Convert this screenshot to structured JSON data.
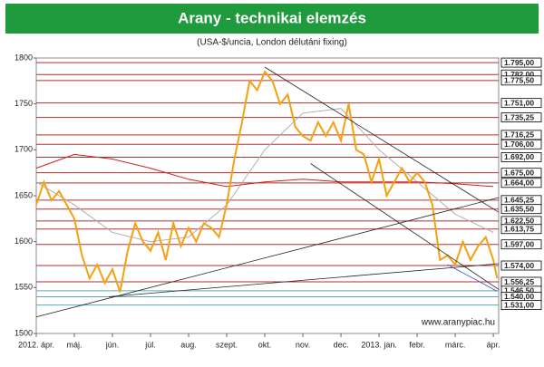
{
  "chart_data": {
    "type": "line",
    "title": "Arany - technikai elemzés",
    "subtitle": "(USA-$/uncia, London délutáni fixing)",
    "watermark": "www.aranypiac.hu",
    "title_bar_color": "#1f9a3c",
    "xlim": [
      0,
      12.14
    ],
    "xticks": [
      {
        "value": 0,
        "label": "2012. ápr."
      },
      {
        "value": 1,
        "label": "máj."
      },
      {
        "value": 2,
        "label": "jún."
      },
      {
        "value": 3,
        "label": "júl."
      },
      {
        "value": 4,
        "label": "aug."
      },
      {
        "value": 5,
        "label": "szept."
      },
      {
        "value": 6,
        "label": "okt."
      },
      {
        "value": 7,
        "label": "nov."
      },
      {
        "value": 8,
        "label": "dec."
      },
      {
        "value": 9,
        "label": "2013. jan."
      },
      {
        "value": 10,
        "label": "febr."
      },
      {
        "value": 11,
        "label": "márc."
      },
      {
        "value": 12,
        "label": "ápr."
      }
    ],
    "ylim": [
      1500,
      1800
    ],
    "yticks": [
      1500,
      1550,
      1600,
      1650,
      1700,
      1750,
      1800
    ],
    "y2lim": [
      1500,
      1800
    ],
    "y2ticks": [
      {
        "value": 1795,
        "label": "1.795,00"
      },
      {
        "value": 1782,
        "label": "1.782,00"
      },
      {
        "value": 1775.5,
        "label": "1.775,50"
      },
      {
        "value": 1751,
        "label": "1.751,00"
      },
      {
        "value": 1735.25,
        "label": "1.735,25"
      },
      {
        "value": 1716.25,
        "label": "1.716,25"
      },
      {
        "value": 1706,
        "label": "1.706,00"
      },
      {
        "value": 1692,
        "label": "1.692,00"
      },
      {
        "value": 1675,
        "label": "1.675,00"
      },
      {
        "value": 1664,
        "label": "1.664,00"
      },
      {
        "value": 1645.25,
        "label": "1.645,25"
      },
      {
        "value": 1635.5,
        "label": "1.635,50"
      },
      {
        "value": 1622.5,
        "label": "1.622,50"
      },
      {
        "value": 1613.75,
        "label": "1.613,75"
      },
      {
        "value": 1597,
        "label": "1.597,00"
      },
      {
        "value": 1574,
        "label": "1.574,00"
      },
      {
        "value": 1556.25,
        "label": "1.556,25"
      },
      {
        "value": 1546.5,
        "label": "1.546,50"
      },
      {
        "value": 1540,
        "label": "1.540,00"
      },
      {
        "value": 1531,
        "label": "1.531,00"
      }
    ],
    "y2_line_colors": [
      "#b03030",
      "#b03030",
      "#b03030",
      "#b03030",
      "#b03030",
      "#b03030",
      "#b03030",
      "#b03030",
      "#b03030",
      "#b03030",
      "#b03030",
      "#b03030",
      "#b03030",
      "#b03030",
      "#b03030",
      "#b03030",
      "#b03030",
      "#5aa8b8",
      "#5aa8b8",
      "#5aa8b8"
    ],
    "series": [
      {
        "color": "#b0b0b0",
        "x": [
          0,
          1,
          2,
          3,
          4,
          5,
          6,
          7,
          8,
          9,
          10,
          11,
          12
        ],
        "values": [
          1665,
          1640,
          1610,
          1600,
          1605,
          1640,
          1700,
          1740,
          1745,
          1700,
          1665,
          1630,
          1610
        ]
      },
      {
        "color": "#cc2020",
        "x": [
          0,
          1,
          2,
          3,
          4,
          5,
          6,
          7,
          8,
          9,
          10,
          11,
          12
        ],
        "values": [
          1680,
          1695,
          1690,
          1680,
          1668,
          1660,
          1665,
          1668,
          1665,
          1665,
          1665,
          1663,
          1660
        ]
      },
      {
        "color": "#f5a00f",
        "x": [
          0,
          0.2,
          0.4,
          0.6,
          0.8,
          1,
          1.2,
          1.4,
          1.6,
          1.8,
          2,
          2.2,
          2.4,
          2.6,
          2.8,
          3,
          3.2,
          3.4,
          3.6,
          3.8,
          4,
          4.2,
          4.4,
          4.6,
          4.8,
          5,
          5.2,
          5.4,
          5.6,
          5.8,
          6,
          6.2,
          6.4,
          6.6,
          6.8,
          7,
          7.2,
          7.4,
          7.6,
          7.8,
          8,
          8.2,
          8.4,
          8.6,
          8.8,
          9,
          9.2,
          9.4,
          9.6,
          9.8,
          10,
          10.2,
          10.4,
          10.6,
          10.8,
          11,
          11.2,
          11.4,
          11.6,
          11.8,
          12,
          12.1
        ],
        "values": [
          1640,
          1665,
          1645,
          1655,
          1640,
          1625,
          1585,
          1560,
          1575,
          1555,
          1570,
          1545,
          1590,
          1620,
          1600,
          1590,
          1610,
          1580,
          1620,
          1595,
          1615,
          1600,
          1620,
          1615,
          1605,
          1640,
          1690,
          1730,
          1775,
          1765,
          1785,
          1775,
          1750,
          1760,
          1725,
          1715,
          1710,
          1730,
          1715,
          1730,
          1710,
          1750,
          1700,
          1695,
          1665,
          1690,
          1650,
          1665,
          1680,
          1665,
          1675,
          1665,
          1640,
          1580,
          1585,
          1575,
          1600,
          1580,
          1595,
          1605,
          1580,
          1560
        ]
      },
      {
        "color": "#222222",
        "x": [
          6,
          12.14
        ],
        "values": [
          1790,
          1632
        ]
      },
      {
        "color": "#222222",
        "x": [
          7.2,
          12.14
        ],
        "values": [
          1685,
          1548
        ]
      },
      {
        "color": "#222222",
        "x": [
          0,
          12.14
        ],
        "values": [
          1518,
          1648
        ]
      },
      {
        "color": "#222222",
        "x": [
          1.9,
          12.14
        ],
        "values": [
          1540,
          1576
        ]
      },
      {
        "color": "#3050d0",
        "x": [
          10.8,
          12.1
        ],
        "values": [
          1575,
          1546
        ]
      }
    ]
  }
}
